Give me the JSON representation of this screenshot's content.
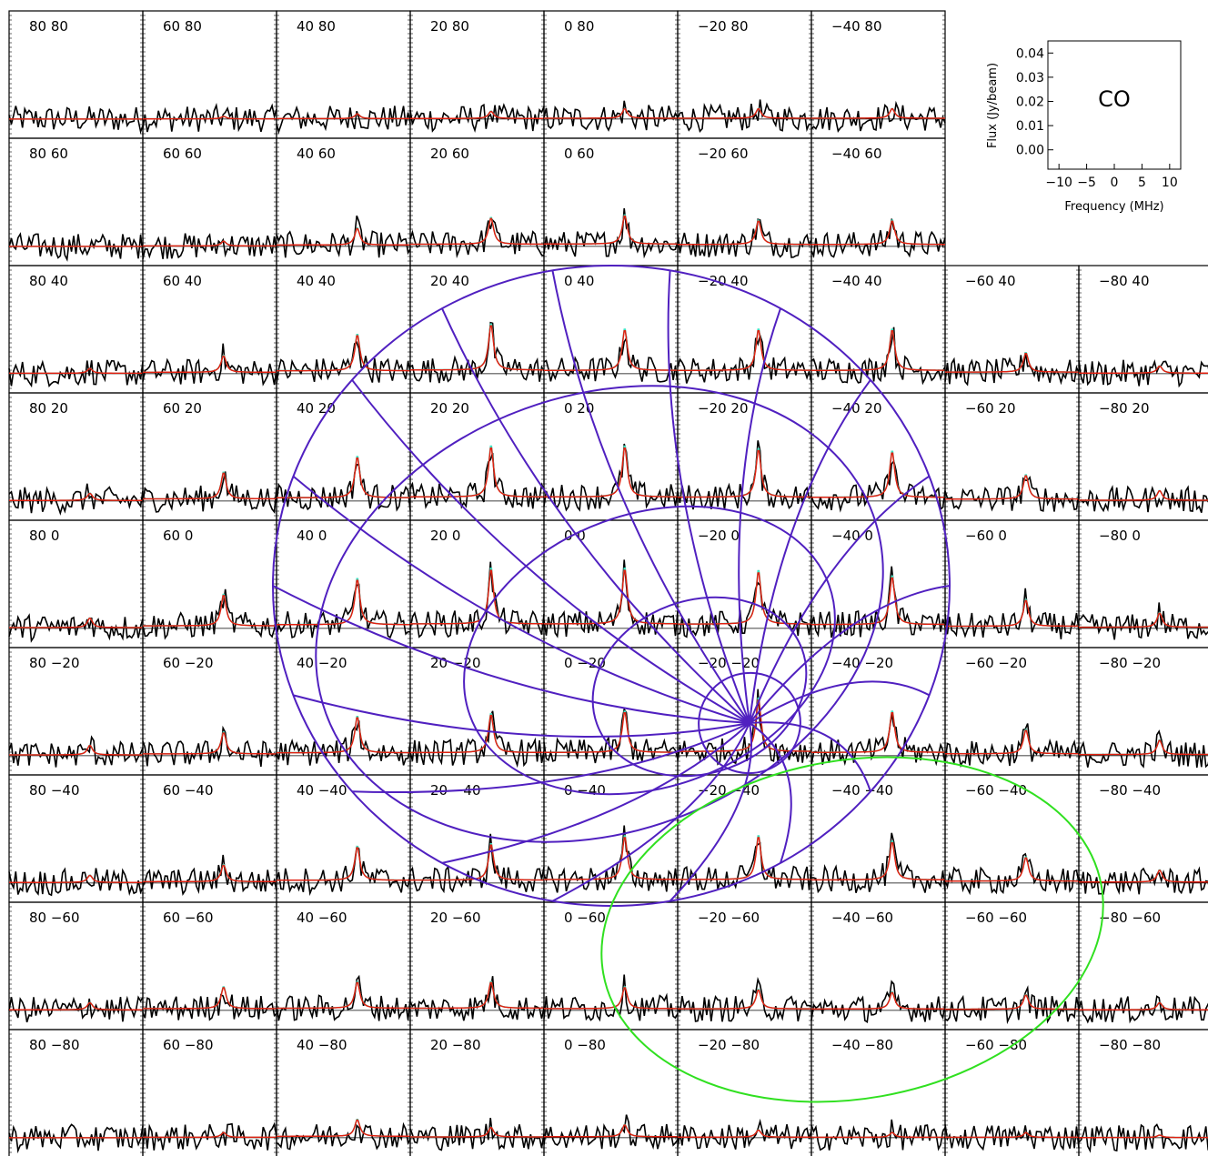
{
  "chart_data": {
    "type": "line",
    "description_note": "",
    "grid_offsets": {
      "columns": [
        80,
        60,
        40,
        20,
        0,
        -20,
        -40,
        -60,
        -80
      ],
      "rows": [
        80,
        60,
        40,
        20,
        0,
        -20,
        -40,
        -60,
        -80
      ]
    },
    "missing_panels": [
      [
        -60,
        80
      ],
      [
        -80,
        80
      ],
      [
        -60,
        60
      ],
      [
        -80,
        60
      ]
    ],
    "spectrum": {
      "xlabel": "Frequency (MHz)",
      "ylabel": "Flux (Jy/beam)",
      "xlim": [
        -12,
        12
      ],
      "ylim": [
        -0.008,
        0.045
      ],
      "xticks": [
        "−10",
        "−5",
        "0",
        "5",
        "10"
      ],
      "yticks": [
        "0.00",
        "0.01",
        "0.02",
        "0.03",
        "0.04"
      ],
      "line_label": "CO",
      "series": [
        {
          "color": "#000000",
          "kind": "observed"
        },
        {
          "color": "#40e0c0",
          "kind": "model"
        },
        {
          "color": "#e02010",
          "kind": "fit"
        }
      ],
      "peak_amplitude_by_panel": {
        "80": {
          "80": 0.0,
          "60": 0.0,
          "40": 0.002,
          "20": 0.003,
          "0": 0.004,
          "-20": 0.004,
          "-40": 0.003,
          "-60": 0.003,
          "-80": 0.0
        },
        "60": {
          "80": 0.001,
          "60": 0.002,
          "40": 0.007,
          "20": 0.011,
          "0": 0.013,
          "-20": 0.009,
          "-40": 0.007,
          "-60": 0.009,
          "-80": 0.002
        },
        "40": {
          "80": 0.002,
          "60": 0.007,
          "40": 0.015,
          "20": 0.017,
          "0": 0.019,
          "-20": 0.015,
          "-40": 0.014,
          "-60": 0.011,
          "-80": 0.007
        },
        "20": {
          "80": 0.003,
          "60": 0.011,
          "40": 0.019,
          "20": 0.021,
          "0": 0.023,
          "-20": 0.016,
          "-40": 0.015,
          "-60": 0.011,
          "-80": 0.004
        },
        "0": {
          "80": 0.004,
          "60": 0.012,
          "40": 0.017,
          "20": 0.021,
          "0": 0.023,
          "-20": 0.017,
          "-40": 0.018,
          "-60": 0.009,
          "-80": 0.005
        },
        "-20": {
          "80": 0.004,
          "60": 0.01,
          "40": 0.017,
          "20": 0.02,
          "0": 0.022,
          "-20": 0.022,
          "-40": 0.018,
          "-60": 0.008,
          "-80": 0.003
        },
        "-40": {
          "80": 0.004,
          "60": 0.01,
          "40": 0.017,
          "20": 0.019,
          "0": 0.02,
          "-20": 0.017,
          "-40": 0.016,
          "-60": 0.007,
          "-80": 0.002
        },
        "-60": {
          "80": 0.0,
          "60": 0.0,
          "40": 0.008,
          "20": 0.01,
          "0": 0.011,
          "-20": 0.01,
          "-40": 0.01,
          "-60": 0.006,
          "-80": 0.002
        },
        "-80": {
          "80": 0.0,
          "60": 0.0,
          "40": 0.003,
          "20": 0.004,
          "0": 0.006,
          "-20": 0.006,
          "-40": 0.005,
          "-60": 0.003,
          "-80": 0.001
        }
      }
    },
    "overlays": {
      "projection_grid_color": "#5020c0",
      "ellipse_color": "#30e020"
    }
  }
}
